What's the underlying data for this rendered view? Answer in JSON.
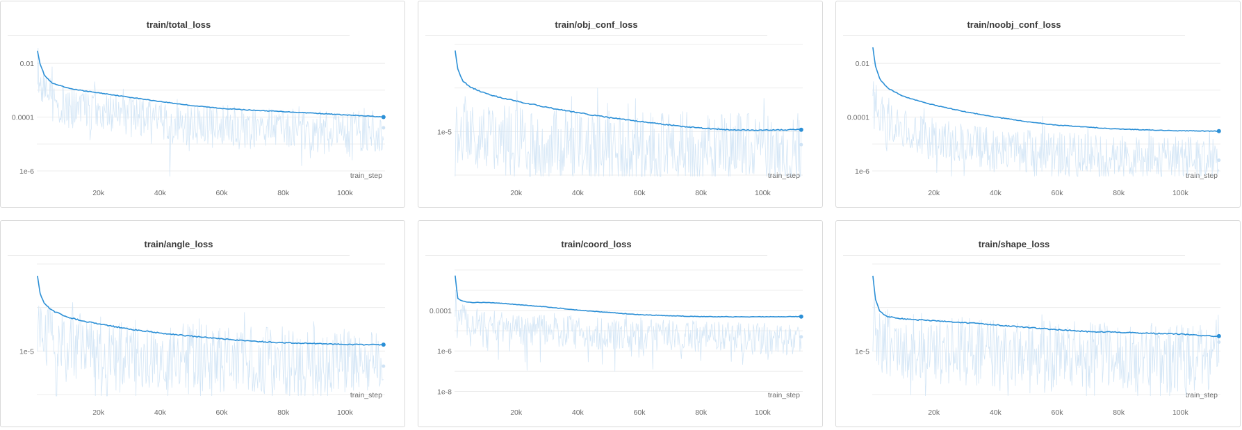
{
  "chart_data": [
    {
      "type": "line",
      "title": "train/total_loss",
      "xlabel": "train_step",
      "ylabel": "",
      "yscale": "log",
      "xlim": [
        0,
        113000
      ],
      "ylim": [
        7e-07,
        0.05
      ],
      "xticks": [
        20000,
        40000,
        60000,
        80000,
        100000
      ],
      "xtick_labels": [
        "20k",
        "40k",
        "60k",
        "80k",
        "100k"
      ],
      "yticks": [
        0.01,
        0.0001,
        1e-06
      ],
      "ytick_labels": [
        "0.01",
        "0.0001",
        "1e-6"
      ],
      "grid": true,
      "series": [
        {
          "role": "smoothed",
          "color": "#2b8fd6",
          "x": [
            200,
            1000,
            2500,
            5000,
            10000,
            15000,
            20000,
            30000,
            40000,
            50000,
            60000,
            70000,
            80000,
            90000,
            100000,
            110000,
            112500
          ],
          "y": [
            0.03,
            0.01,
            0.0035,
            0.0018,
            0.0012,
            0.00095,
            0.0008,
            0.00055,
            0.00038,
            0.00027,
            0.00021,
            0.00018,
            0.00016,
            0.00014,
            0.00012,
            0.000105,
            0.0001
          ]
        },
        {
          "role": "raw",
          "color": "#cfe3f5",
          "x": [
            200,
            1000,
            2500,
            5000,
            10000,
            15000,
            20000,
            30000,
            40000,
            50000,
            60000,
            70000,
            80000,
            90000,
            100000,
            110000,
            112500
          ],
          "y": [
            0.01,
            0.002,
            0.0009,
            0.0004,
            0.00025,
            0.0002,
            0.00015,
            0.0001,
            7e-05,
            5e-05,
            4e-05,
            4e-05,
            3.5e-05,
            3e-05,
            3e-05,
            2.8e-05,
            4e-05
          ]
        }
      ]
    },
    {
      "type": "line",
      "title": "train/obj_conf_loss",
      "xlabel": "train_step",
      "ylabel": "",
      "yscale": "log",
      "xlim": [
        0,
        113000
      ],
      "ylim": [
        1e-06,
        0.001
      ],
      "xticks": [
        20000,
        40000,
        60000,
        80000,
        100000
      ],
      "xtick_labels": [
        "20k",
        "40k",
        "60k",
        "80k",
        "100k"
      ],
      "yticks": [
        1e-05
      ],
      "ytick_labels": [
        "1e-5"
      ],
      "grid": true,
      "series": [
        {
          "role": "smoothed",
          "color": "#2b8fd6",
          "x": [
            200,
            1000,
            2500,
            5000,
            10000,
            15000,
            20000,
            30000,
            40000,
            50000,
            60000,
            70000,
            80000,
            90000,
            100000,
            110000,
            112500
          ],
          "y": [
            0.00075,
            0.00028,
            0.00015,
            0.000105,
            7.5e-05,
            6e-05,
            5e-05,
            3.6e-05,
            2.7e-05,
            2.1e-05,
            1.7e-05,
            1.4e-05,
            1.2e-05,
            1.08e-05,
            1.08e-05,
            1.1e-05,
            1.1e-05
          ]
        },
        {
          "role": "raw",
          "color": "#cfe3f5",
          "x": [
            200,
            1000,
            2500,
            5000,
            10000,
            15000,
            20000,
            30000,
            40000,
            50000,
            60000,
            70000,
            80000,
            90000,
            100000,
            110000,
            112500
          ],
          "y": [
            5e-05,
            1.8e-05,
            1.2e-05,
            1e-05,
            8e-06,
            6.5e-06,
            6e-06,
            5.5e-06,
            5e-06,
            4.8e-06,
            4.5e-06,
            4.5e-06,
            4.4e-06,
            4.3e-06,
            4.2e-06,
            4.2e-06,
            5e-06
          ]
        }
      ]
    },
    {
      "type": "line",
      "title": "train/noobj_conf_loss",
      "xlabel": "train_step",
      "ylabel": "",
      "yscale": "log",
      "xlim": [
        0,
        113000
      ],
      "ylim": [
        7e-07,
        0.05
      ],
      "xticks": [
        20000,
        40000,
        60000,
        80000,
        100000
      ],
      "xtick_labels": [
        "20k",
        "40k",
        "60k",
        "80k",
        "100k"
      ],
      "yticks": [
        0.01,
        0.0001,
        1e-06
      ],
      "ytick_labels": [
        "0.01",
        "0.0001",
        "1e-6"
      ],
      "grid": true,
      "series": [
        {
          "role": "smoothed",
          "color": "#2b8fd6",
          "x": [
            200,
            1000,
            2500,
            5000,
            10000,
            15000,
            20000,
            30000,
            40000,
            50000,
            60000,
            70000,
            80000,
            90000,
            100000,
            110000,
            112500
          ],
          "y": [
            0.04,
            0.008,
            0.0025,
            0.0012,
            0.0006,
            0.0004,
            0.00028,
            0.00016,
            0.0001,
            6.8e-05,
            5e-05,
            4.2e-05,
            3.6e-05,
            3.3e-05,
            3.1e-05,
            3e-05,
            3e-05
          ]
        },
        {
          "role": "raw",
          "color": "#cfe3f5",
          "x": [
            200,
            1000,
            2500,
            5000,
            10000,
            15000,
            20000,
            30000,
            40000,
            50000,
            60000,
            70000,
            80000,
            90000,
            100000,
            110000,
            112500
          ],
          "y": [
            0.001,
            0.0003,
            0.00012,
            6e-05,
            3e-05,
            2e-05,
            1.5e-05,
            1e-05,
            7e-06,
            5.5e-06,
            4.5e-06,
            4e-06,
            3.5e-06,
            3.2e-06,
            3e-06,
            2.8e-06,
            2.5e-06
          ]
        }
      ]
    },
    {
      "type": "line",
      "title": "train/angle_loss",
      "xlabel": "train_step",
      "ylabel": "",
      "yscale": "log",
      "xlim": [
        0,
        113000
      ],
      "ylim": [
        1e-06,
        0.001
      ],
      "xticks": [
        20000,
        40000,
        60000,
        80000,
        100000
      ],
      "xtick_labels": [
        "20k",
        "40k",
        "60k",
        "80k",
        "100k"
      ],
      "yticks": [
        1e-05
      ],
      "ytick_labels": [
        "1e-5"
      ],
      "grid": true,
      "series": [
        {
          "role": "smoothed",
          "color": "#2b8fd6",
          "x": [
            200,
            1000,
            2500,
            5000,
            10000,
            15000,
            20000,
            30000,
            40000,
            50000,
            60000,
            70000,
            80000,
            90000,
            100000,
            110000,
            112500
          ],
          "y": [
            0.00055,
            0.00022,
            0.00012,
            8.5e-05,
            6e-05,
            4.9e-05,
            4.2e-05,
            3.2e-05,
            2.6e-05,
            2.2e-05,
            1.9e-05,
            1.68e-05,
            1.55e-05,
            1.48e-05,
            1.42e-05,
            1.4e-05,
            1.4e-05
          ]
        },
        {
          "role": "raw",
          "color": "#cfe3f5",
          "x": [
            200,
            1000,
            2500,
            5000,
            10000,
            15000,
            20000,
            30000,
            40000,
            50000,
            60000,
            70000,
            80000,
            90000,
            100000,
            110000,
            112500
          ],
          "y": [
            6e-05,
            3.5e-05,
            2.5e-05,
            2e-05,
            1.5e-05,
            1.2e-05,
            1e-05,
            8.5e-06,
            7.5e-06,
            7e-06,
            6.5e-06,
            6e-06,
            5.8e-06,
            5.5e-06,
            5.3e-06,
            5e-06,
            4.5e-06
          ]
        }
      ]
    },
    {
      "type": "line",
      "title": "train/coord_loss",
      "xlabel": "train_step",
      "ylabel": "",
      "yscale": "log",
      "xlim": [
        0,
        113000
      ],
      "ylim": [
        7e-09,
        0.02
      ],
      "xticks": [
        20000,
        40000,
        60000,
        80000,
        100000
      ],
      "xtick_labels": [
        "20k",
        "40k",
        "60k",
        "80k",
        "100k"
      ],
      "yticks": [
        0.0001,
        1e-06,
        1e-08
      ],
      "ytick_labels": [
        "0.0001",
        "1e-6",
        "1e-8"
      ],
      "grid": true,
      "series": [
        {
          "role": "smoothed",
          "color": "#2b8fd6",
          "x": [
            200,
            1000,
            2500,
            5000,
            10000,
            15000,
            20000,
            30000,
            40000,
            50000,
            60000,
            70000,
            80000,
            90000,
            100000,
            110000,
            112500
          ],
          "y": [
            0.0055,
            0.0004,
            0.0003,
            0.00025,
            0.00025,
            0.00023,
            0.0002,
            0.00015,
            0.000105,
            8e-05,
            6.2e-05,
            5.5e-05,
            5e-05,
            4.9e-05,
            4.9e-05,
            5e-05,
            5e-05
          ]
        },
        {
          "role": "raw",
          "color": "#cfe3f5",
          "x": [
            200,
            1000,
            2500,
            5000,
            10000,
            15000,
            20000,
            30000,
            40000,
            50000,
            60000,
            70000,
            80000,
            90000,
            100000,
            110000,
            112500
          ],
          "y": [
            0.0003,
            8e-05,
            4e-05,
            2.5e-05,
            2e-05,
            1.5e-05,
            1.2e-05,
            1e-05,
            8e-06,
            7e-06,
            6e-06,
            5.5e-06,
            5e-06,
            4.5e-06,
            4e-06,
            4e-06,
            5e-06
          ]
        }
      ]
    },
    {
      "type": "line",
      "title": "train/shape_loss",
      "xlabel": "train_step",
      "ylabel": "",
      "yscale": "log",
      "xlim": [
        0,
        113000
      ],
      "ylim": [
        1e-06,
        0.001
      ],
      "xticks": [
        20000,
        40000,
        60000,
        80000,
        100000
      ],
      "xtick_labels": [
        "20k",
        "40k",
        "60k",
        "80k",
        "100k"
      ],
      "yticks": [
        1e-05
      ],
      "ytick_labels": [
        "1e-5"
      ],
      "grid": true,
      "series": [
        {
          "role": "smoothed",
          "color": "#2b8fd6",
          "x": [
            200,
            1000,
            2500,
            5000,
            10000,
            15000,
            20000,
            30000,
            40000,
            50000,
            60000,
            70000,
            80000,
            90000,
            100000,
            110000,
            112500
          ],
          "y": [
            0.00055,
            0.00016,
            8e-05,
            6.2e-05,
            5.5e-05,
            5.2e-05,
            5e-05,
            4.5e-05,
            4e-05,
            3.5e-05,
            3.1e-05,
            2.8e-05,
            2.7e-05,
            2.55e-05,
            2.45e-05,
            2.2e-05,
            2.2e-05
          ]
        },
        {
          "role": "raw",
          "color": "#cfe3f5",
          "x": [
            200,
            1000,
            2500,
            5000,
            10000,
            15000,
            20000,
            30000,
            40000,
            50000,
            60000,
            70000,
            80000,
            90000,
            100000,
            110000,
            112500
          ],
          "y": [
            6e-05,
            3e-05,
            2e-05,
            1.6e-05,
            1.4e-05,
            1.2e-05,
            1.1e-05,
            1e-05,
            9e-06,
            8.5e-06,
            8e-06,
            7.5e-06,
            7e-06,
            7e-06,
            6.8e-06,
            6.5e-06,
            1.6e-05
          ]
        }
      ]
    }
  ]
}
